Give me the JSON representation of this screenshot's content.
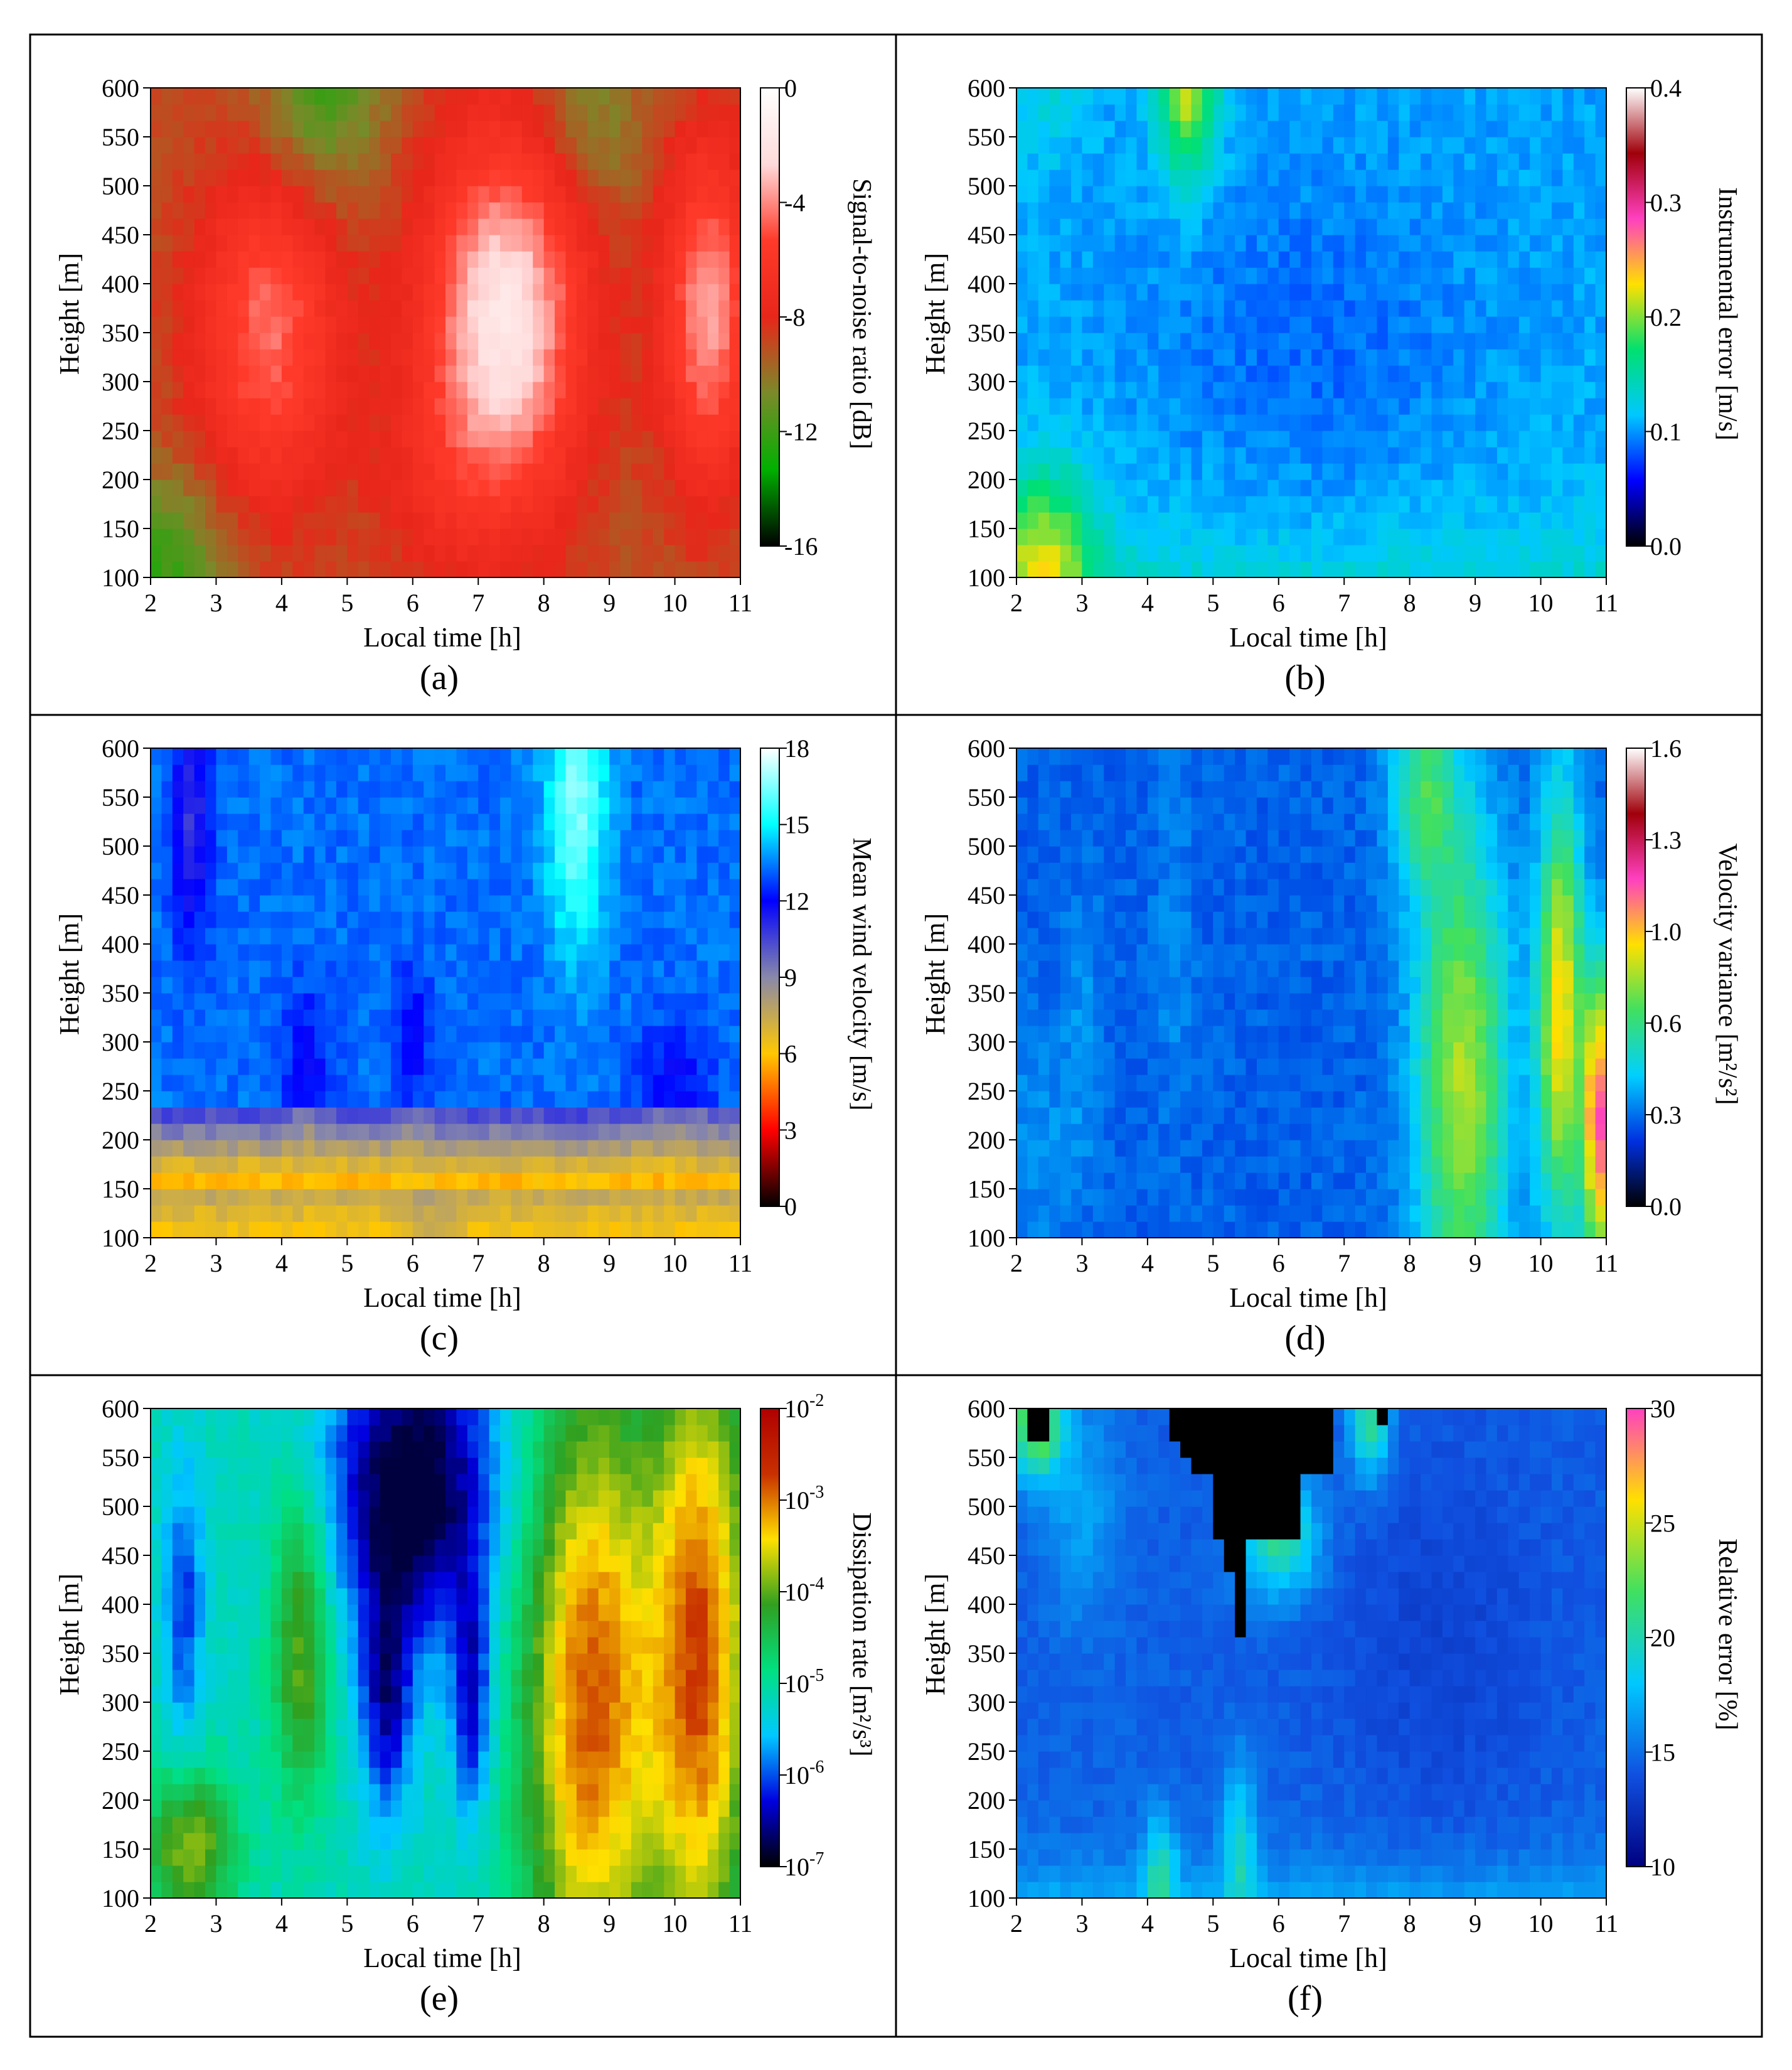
{
  "figure": {
    "panels": [
      {
        "id": "a",
        "panel_label": "(a)",
        "colorbar_label": "Signal-to-noise ratio [dB]"
      },
      {
        "id": "b",
        "panel_label": "(b)",
        "colorbar_label": "Instrumental error [m/s]"
      },
      {
        "id": "c",
        "panel_label": "(c)",
        "colorbar_label": "Mean wind velocity [m/s]"
      },
      {
        "id": "d",
        "panel_label": "(d)",
        "colorbar_label": "Velocity variance [m²/s²]"
      },
      {
        "id": "e",
        "panel_label": "(e)",
        "colorbar_label": "Dissipation rate [m²/s³]"
      },
      {
        "id": "f",
        "panel_label": "(f)",
        "colorbar_label": "Relative error [%]"
      }
    ]
  },
  "chart_data": [
    {
      "id": "a",
      "type": "heatmap",
      "title": "(a)",
      "xlabel": "Local time [h]",
      "ylabel": "Height [m]",
      "xlim": [
        2,
        11
      ],
      "ylim": [
        100,
        600
      ],
      "xticks": [
        "2",
        "3",
        "4",
        "5",
        "6",
        "7",
        "8",
        "9",
        "10",
        "11"
      ],
      "yticks": [
        "100",
        "150",
        "200",
        "250",
        "300",
        "350",
        "400",
        "450",
        "500",
        "550",
        "600"
      ],
      "colorbar": {
        "label": "Signal-to-noise ratio [dB]",
        "range": [
          -16,
          0
        ],
        "ticks": [
          "0",
          "-4",
          "-8",
          "-12",
          "-16"
        ],
        "colors": [
          "#000000",
          "#00b000",
          "#7a8a2a",
          "#e8261a",
          "#ff3a2a",
          "#ffdada",
          "#ffffff"
        ]
      },
      "features": [
        {
          "x": 3.8,
          "y": 350,
          "value": -5
        },
        {
          "x": 7.4,
          "y": 350,
          "value": -2
        },
        {
          "x": 10.5,
          "y": 360,
          "value": -3
        },
        {
          "x": 4.6,
          "y": 570,
          "value": -14
        },
        {
          "x": 2.5,
          "y": 130,
          "value": -14
        }
      ]
    },
    {
      "id": "b",
      "type": "heatmap",
      "title": "(b)",
      "xlabel": "Local time [h]",
      "ylabel": "Height [m]",
      "xlim": [
        2,
        11
      ],
      "ylim": [
        100,
        600
      ],
      "xticks": [
        "2",
        "3",
        "4",
        "5",
        "6",
        "7",
        "8",
        "9",
        "10",
        "11"
      ],
      "yticks": [
        "100",
        "150",
        "200",
        "250",
        "300",
        "350",
        "400",
        "450",
        "500",
        "550",
        "600"
      ],
      "colorbar": {
        "label": "Instrumental error [m/s]",
        "range": [
          0.0,
          0.4
        ],
        "ticks": [
          "0.4",
          "0.3",
          "0.2",
          "0.1",
          "0.0"
        ],
        "colors": [
          "#000000",
          "#0000ff",
          "#00c8ff",
          "#00e070",
          "#ffe000",
          "#ff40c0",
          "#a0000a",
          "#ffffff"
        ]
      },
      "features": [
        {
          "x": 4.6,
          "y": 580,
          "value": 0.26
        },
        {
          "x": 2.5,
          "y": 130,
          "value": 0.24
        },
        {
          "x": 6.0,
          "y": 350,
          "value": 0.06
        }
      ]
    },
    {
      "id": "c",
      "type": "heatmap",
      "title": "(c)",
      "xlabel": "Local time [h]",
      "ylabel": "Height [m]",
      "xlim": [
        2,
        11
      ],
      "ylim": [
        100,
        600
      ],
      "xticks": [
        "2",
        "3",
        "4",
        "5",
        "6",
        "7",
        "8",
        "9",
        "10",
        "11"
      ],
      "yticks": [
        "100",
        "150",
        "200",
        "250",
        "300",
        "350",
        "400",
        "450",
        "500",
        "550",
        "600"
      ],
      "colorbar": {
        "label": "Mean wind velocity [m/s]",
        "range": [
          0,
          18
        ],
        "ticks": [
          "18",
          "15",
          "12",
          "9",
          "6",
          "3",
          "0"
        ],
        "colors": [
          "#000000",
          "#ff0000",
          "#ffc800",
          "#8888aa",
          "#0000ff",
          "#00ffff",
          "#ffffff"
        ]
      },
      "features": [
        {
          "x": 8.5,
          "y": 520,
          "value": 17
        },
        {
          "x": 2.6,
          "y": 520,
          "value": 11
        },
        {
          "x": 2.5,
          "y": 115,
          "value": 4
        },
        {
          "x": 5.0,
          "y": 180,
          "value": 10
        }
      ]
    },
    {
      "id": "d",
      "type": "heatmap",
      "title": "(d)",
      "xlabel": "Local time [h]",
      "ylabel": "Height [m]",
      "xlim": [
        2,
        11
      ],
      "ylim": [
        100,
        600
      ],
      "xticks": [
        "2",
        "3",
        "4",
        "5",
        "6",
        "7",
        "8",
        "9",
        "10",
        "11"
      ],
      "yticks": [
        "100",
        "150",
        "200",
        "250",
        "300",
        "350",
        "400",
        "450",
        "500",
        "550",
        "600"
      ],
      "colorbar": {
        "label": "Velocity variance [m²/s²]",
        "range": [
          0.0,
          1.6
        ],
        "ticks": [
          "1.6",
          "1.3",
          "1.0",
          "0.6",
          "0.3",
          "0.0"
        ],
        "colors": [
          "#000000",
          "#0030e0",
          "#00d0ff",
          "#40e060",
          "#ffe000",
          "#ff40c0",
          "#a0000a",
          "#ffffff"
        ]
      },
      "features": [
        {
          "x": 8.8,
          "y": 250,
          "value": 0.95
        },
        {
          "x": 10.3,
          "y": 400,
          "value": 1.0
        },
        {
          "x": 10.9,
          "y": 200,
          "value": 1.55
        },
        {
          "x": 5.5,
          "y": 350,
          "value": 0.05
        }
      ]
    },
    {
      "id": "e",
      "type": "heatmap",
      "title": "(e)",
      "xlabel": "Local time [h]",
      "ylabel": "Height [m]",
      "xlim": [
        2,
        11
      ],
      "ylim": [
        100,
        600
      ],
      "xticks": [
        "2",
        "3",
        "4",
        "5",
        "6",
        "7",
        "8",
        "9",
        "10",
        "11"
      ],
      "yticks": [
        "100",
        "150",
        "200",
        "250",
        "300",
        "350",
        "400",
        "450",
        "500",
        "550",
        "600"
      ],
      "colorbar": {
        "label": "Dissipation rate [m²/s³]",
        "range": [
          -7,
          -2
        ],
        "scale": "log10",
        "ticks": [
          "10",
          "10",
          "10",
          "10",
          "10",
          "10"
        ],
        "tick_exponents": [
          "-2",
          "-3",
          "-4",
          "-5",
          "-6",
          "-7"
        ],
        "colors": [
          "#000000",
          "#0000e0",
          "#00c8ff",
          "#00e080",
          "#30a020",
          "#ffe000",
          "#c83000",
          "#b00000"
        ]
      },
      "features": [
        {
          "x": 8.6,
          "y": 250,
          "value": -2.3
        },
        {
          "x": 10.5,
          "y": 300,
          "value": -2.4
        },
        {
          "x": 4.2,
          "y": 380,
          "value": -3.4
        },
        {
          "x": 6.0,
          "y": 520,
          "value": -7
        }
      ]
    },
    {
      "id": "f",
      "type": "heatmap",
      "title": "(f)",
      "xlabel": "Local time [h]",
      "ylabel": "Height [m]",
      "xlim": [
        2,
        11
      ],
      "ylim": [
        100,
        600
      ],
      "xticks": [
        "2",
        "3",
        "4",
        "5",
        "6",
        "7",
        "8",
        "9",
        "10",
        "11"
      ],
      "yticks": [
        "100",
        "150",
        "200",
        "250",
        "300",
        "350",
        "400",
        "450",
        "500",
        "550",
        "600"
      ],
      "colorbar": {
        "label": "Relative error [%]",
        "range": [
          10,
          30
        ],
        "ticks": [
          "30",
          "25",
          "20",
          "15",
          "10"
        ],
        "colors": [
          "#000080",
          "#1050e0",
          "#00c8ff",
          "#40e060",
          "#ffe000",
          "#ff40c0"
        ]
      },
      "features": [
        {
          "x": 5.5,
          "y": 520,
          "value": 35
        },
        {
          "x": 2.5,
          "y": 580,
          "value": 25
        },
        {
          "x": 8.5,
          "y": 350,
          "value": 10.5
        },
        {
          "x": 4.2,
          "y": 120,
          "value": 20
        }
      ]
    }
  ]
}
